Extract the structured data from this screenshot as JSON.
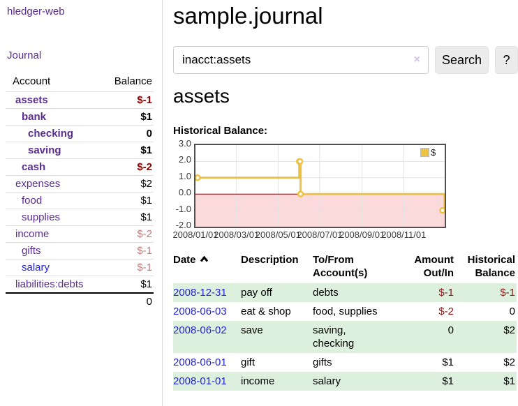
{
  "app": {
    "brand": "hledger-web",
    "nav_journal": "Journal"
  },
  "sidebar": {
    "col_account": "Account",
    "col_balance": "Balance",
    "accounts": [
      {
        "name": "assets",
        "balance": "$-1"
      },
      {
        "name": "bank",
        "balance": "$1"
      },
      {
        "name": "checking",
        "balance": "0"
      },
      {
        "name": "saving",
        "balance": "$1"
      },
      {
        "name": "cash",
        "balance": "$-2"
      },
      {
        "name": "expenses",
        "balance": "$2"
      },
      {
        "name": "food",
        "balance": "$1"
      },
      {
        "name": "supplies",
        "balance": "$1"
      },
      {
        "name": "income",
        "balance": "$-2"
      },
      {
        "name": "gifts",
        "balance": "$-1"
      },
      {
        "name": "salary",
        "balance": "$-1"
      },
      {
        "name": "liabilities:debts",
        "balance": "$1"
      }
    ],
    "total": "0"
  },
  "main": {
    "title": "sample.journal",
    "search": {
      "value": "inacct:assets",
      "clear_icon": "×",
      "search_label": "Search",
      "help_label": "?"
    },
    "account_heading": "assets",
    "chart_title": "Historical Balance:"
  },
  "chart_data": {
    "type": "line",
    "title": "Historical Balance:",
    "step": true,
    "series": [
      {
        "name": "$",
        "color": "#edc240",
        "points": [
          {
            "date": "2008-01-01",
            "value": 1
          },
          {
            "date": "2008-06-01",
            "value": 2
          },
          {
            "date": "2008-06-02",
            "value": 2
          },
          {
            "date": "2008-06-03",
            "value": 0
          },
          {
            "date": "2008-12-31",
            "value": -1
          }
        ]
      }
    ],
    "x_ticks": [
      "2008/01/01",
      "2008/03/01",
      "2008/05/01",
      "2008/07/01",
      "2008/09/01",
      "2008/11/01"
    ],
    "y_ticks": [
      "3.0",
      "2.0",
      "1.0",
      "0.0",
      "-1.0",
      "-2.0"
    ],
    "ylim": [
      -2,
      3
    ],
    "grid": true,
    "negative_region_color": "#fadada",
    "zero_line_color": "#8b0000",
    "legend": {
      "label": "$",
      "position": "top-right"
    }
  },
  "register": {
    "headers": {
      "date": "Date",
      "description": "Description",
      "tofrom1": "To/From",
      "tofrom2": "Account(s)",
      "amount1": "Amount",
      "amount2": "Out/In",
      "hist1": "Historical",
      "hist2": "Balance"
    },
    "rows": [
      {
        "date": "2008-12-31",
        "description": "pay off",
        "accounts": "debts",
        "amount": "$-1",
        "balance": "$-1"
      },
      {
        "date": "2008-06-03",
        "description": "eat & shop",
        "accounts": "food, supplies",
        "amount": "$-2",
        "balance": "0"
      },
      {
        "date": "2008-06-02",
        "description": "save",
        "accounts": "saving, checking",
        "amount": "0",
        "balance": "$2"
      },
      {
        "date": "2008-06-01",
        "description": "gift",
        "accounts": "gifts",
        "amount": "$1",
        "balance": "$2"
      },
      {
        "date": "2008-01-01",
        "description": "income",
        "accounts": "salary",
        "amount": "$1",
        "balance": "$1"
      }
    ]
  }
}
